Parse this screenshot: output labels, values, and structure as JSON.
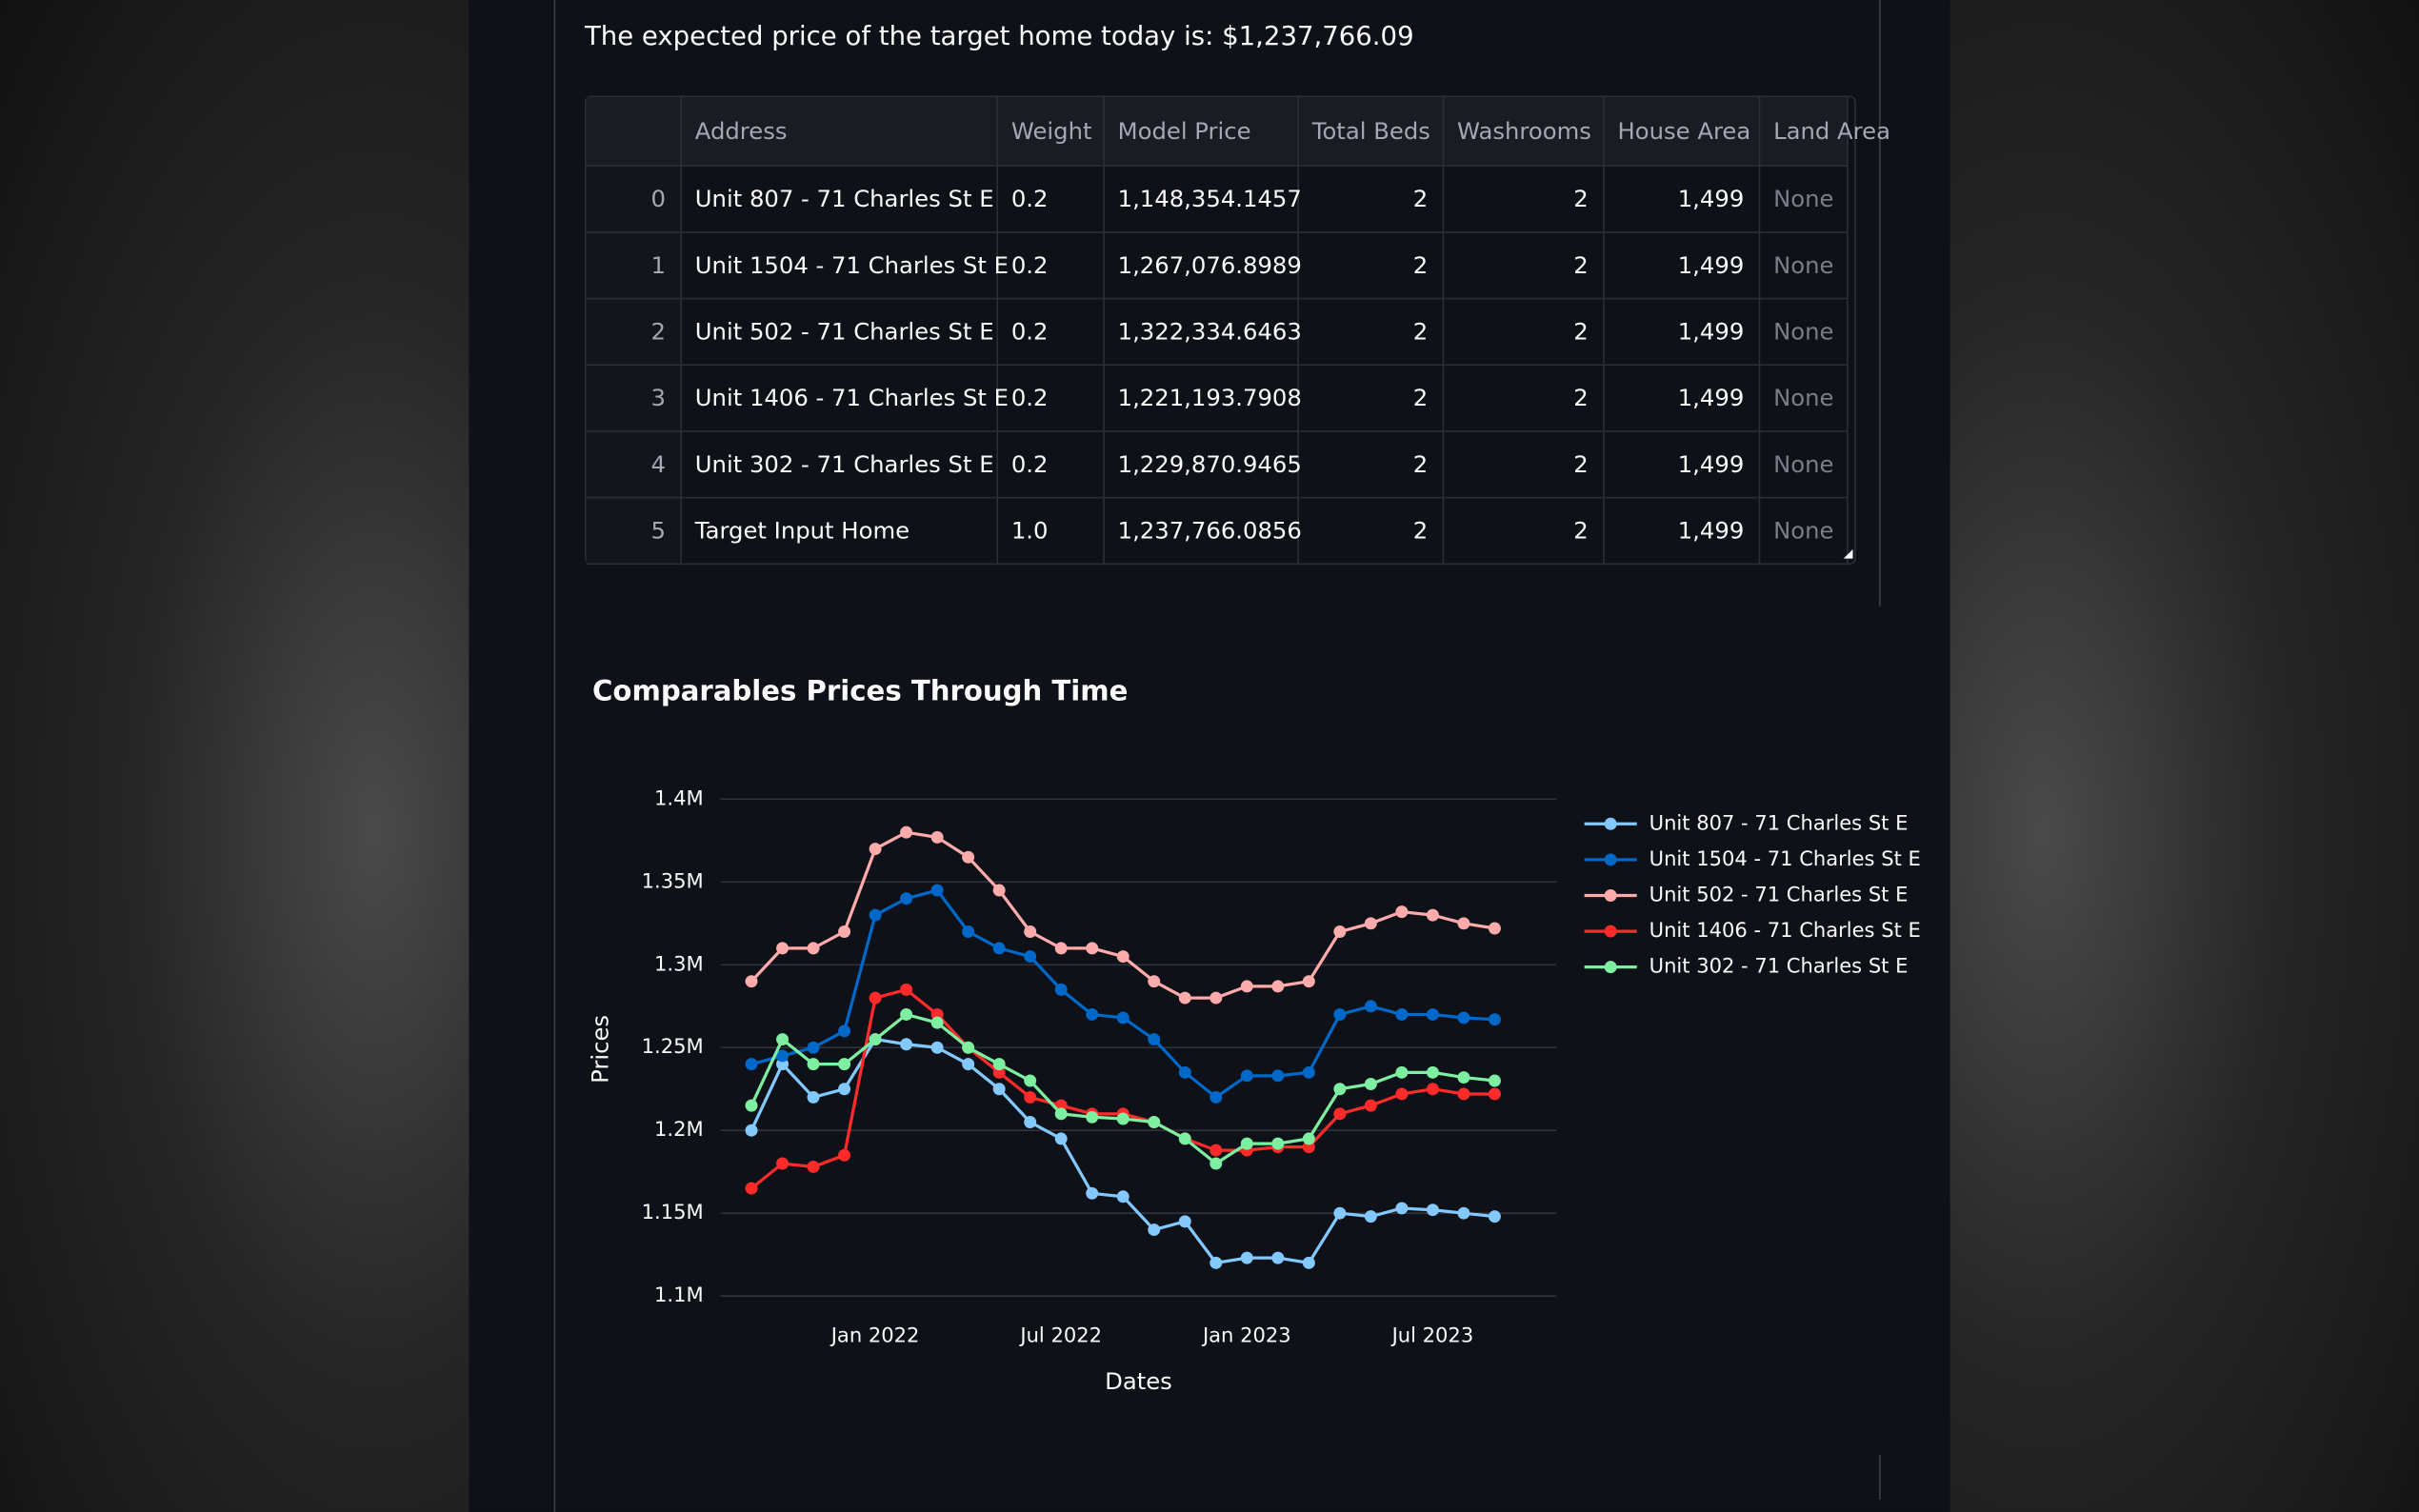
{
  "header": {
    "text": "The expected price of the target home today is: $1,237,766.09"
  },
  "table": {
    "columns": [
      "Address",
      "Weight",
      "Model Price",
      "Total Beds",
      "Washrooms",
      "House Area",
      "Land Area"
    ],
    "rows": [
      [
        "0",
        "Unit 807 - 71 Charles St E",
        "0.2",
        "1,148,354.1457",
        "2",
        "2",
        "1,499",
        "None"
      ],
      [
        "1",
        "Unit 1504 - 71 Charles St E",
        "0.2",
        "1,267,076.8989",
        "2",
        "2",
        "1,499",
        "None"
      ],
      [
        "2",
        "Unit 502 - 71 Charles St E",
        "0.2",
        "1,322,334.6463",
        "2",
        "2",
        "1,499",
        "None"
      ],
      [
        "3",
        "Unit 1406 - 71 Charles St E",
        "0.2",
        "1,221,193.7908",
        "2",
        "2",
        "1,499",
        "None"
      ],
      [
        "4",
        "Unit 302 - 71 Charles St E",
        "0.2",
        "1,229,870.9465",
        "2",
        "2",
        "1,499",
        "None"
      ],
      [
        "5",
        "Target Input Home",
        "1.0",
        "1,237,766.0856",
        "2",
        "2",
        "1,499",
        "None"
      ]
    ]
  },
  "chart_data": {
    "type": "line",
    "title": "Comparables Prices Through Time",
    "x_label": "Dates",
    "y_label": "Prices",
    "grid": true,
    "legend": "right",
    "x": [
      "2021-09",
      "2021-10",
      "2021-11",
      "2021-12",
      "2022-01",
      "2022-02",
      "2022-03",
      "2022-04",
      "2022-05",
      "2022-06",
      "2022-07",
      "2022-08",
      "2022-09",
      "2022-10",
      "2022-11",
      "2022-12",
      "2023-01",
      "2023-02",
      "2023-03",
      "2023-04",
      "2023-05",
      "2023-06",
      "2023-07",
      "2023-08",
      "2023-09"
    ],
    "xlim": [
      "2021-08",
      "2023-11"
    ],
    "xticks": [
      {
        "value": "2022-01",
        "label": "Jan 2022"
      },
      {
        "value": "2022-07",
        "label": "Jul 2022"
      },
      {
        "value": "2023-01",
        "label": "Jan 2023"
      },
      {
        "value": "2023-07",
        "label": "Jul 2023"
      }
    ],
    "ylim": [
      1100000,
      1400000
    ],
    "yticks": [
      {
        "value": 1100000,
        "label": "1.1M"
      },
      {
        "value": 1150000,
        "label": "1.15M"
      },
      {
        "value": 1200000,
        "label": "1.2M"
      },
      {
        "value": 1250000,
        "label": "1.25M"
      },
      {
        "value": 1300000,
        "label": "1.3M"
      },
      {
        "value": 1350000,
        "label": "1.35M"
      },
      {
        "value": 1400000,
        "label": "1.4M"
      }
    ],
    "series": [
      {
        "name": "Unit 807 - 71 Charles St E",
        "color": "#83c9ff",
        "values": [
          1200000,
          1240000,
          1220000,
          1225000,
          1255000,
          1252000,
          1250000,
          1240000,
          1225000,
          1205000,
          1195000,
          1162000,
          1160000,
          1140000,
          1145000,
          1120000,
          1123000,
          1123000,
          1120000,
          1150000,
          1148000,
          1153000,
          1152000,
          1150000,
          1148000
        ]
      },
      {
        "name": "Unit 1504 - 71 Charles St E",
        "color": "#0068c9",
        "values": [
          1240000,
          1245000,
          1250000,
          1260000,
          1330000,
          1340000,
          1345000,
          1320000,
          1310000,
          1305000,
          1285000,
          1270000,
          1268000,
          1255000,
          1235000,
          1220000,
          1233000,
          1233000,
          1235000,
          1270000,
          1275000,
          1270000,
          1270000,
          1268000,
          1267000
        ]
      },
      {
        "name": "Unit 502 - 71 Charles St E",
        "color": "#ffabab",
        "values": [
          1290000,
          1310000,
          1310000,
          1320000,
          1370000,
          1380000,
          1377000,
          1365000,
          1345000,
          1320000,
          1310000,
          1310000,
          1305000,
          1290000,
          1280000,
          1280000,
          1287000,
          1287000,
          1290000,
          1320000,
          1325000,
          1332000,
          1330000,
          1325000,
          1322000
        ]
      },
      {
        "name": "Unit 1406 - 71 Charles St E",
        "color": "#ff2b2b",
        "values": [
          1165000,
          1180000,
          1178000,
          1185000,
          1280000,
          1285000,
          1270000,
          1250000,
          1235000,
          1220000,
          1215000,
          1210000,
          1210000,
          1205000,
          1195000,
          1188000,
          1188000,
          1190000,
          1190000,
          1210000,
          1215000,
          1222000,
          1225000,
          1222000,
          1222000
        ]
      },
      {
        "name": "Unit 302 - 71 Charles St E",
        "color": "#7defa1",
        "values": [
          1215000,
          1255000,
          1240000,
          1240000,
          1255000,
          1270000,
          1265000,
          1250000,
          1240000,
          1230000,
          1210000,
          1208000,
          1207000,
          1205000,
          1195000,
          1180000,
          1192000,
          1192000,
          1195000,
          1225000,
          1228000,
          1235000,
          1235000,
          1232000,
          1230000
        ]
      }
    ]
  }
}
